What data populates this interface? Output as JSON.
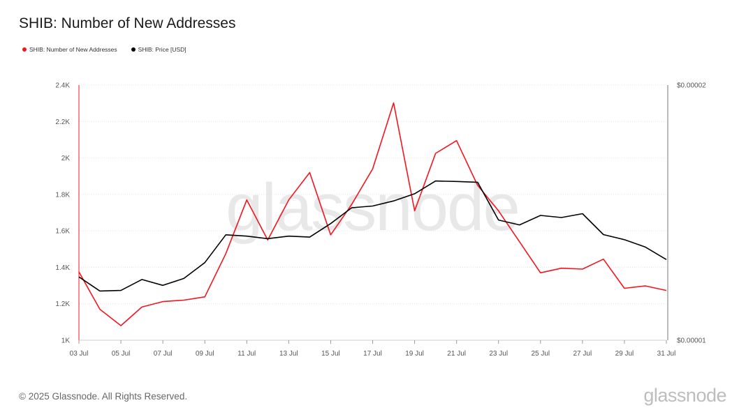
{
  "title": "SHIB: Number of New Addresses",
  "legend": [
    {
      "label": "SHIB: Number of New Addresses",
      "color": "#f5141e"
    },
    {
      "label": "SHIB: Price [USD]",
      "color": "#000000"
    }
  ],
  "watermark": "glassnode",
  "footer": "© 2025 Glassnode. All Rights Reserved.",
  "brand": "glassnode",
  "chart_data": {
    "type": "line",
    "x": [
      "03 Jul",
      "04 Jul",
      "05 Jul",
      "06 Jul",
      "07 Jul",
      "08 Jul",
      "09 Jul",
      "10 Jul",
      "11 Jul",
      "12 Jul",
      "13 Jul",
      "14 Jul",
      "15 Jul",
      "16 Jul",
      "17 Jul",
      "18 Jul",
      "19 Jul",
      "20 Jul",
      "21 Jul",
      "22 Jul",
      "23 Jul",
      "24 Jul",
      "25 Jul",
      "26 Jul",
      "27 Jul",
      "28 Jul",
      "29 Jul",
      "30 Jul",
      "31 Jul"
    ],
    "x_tick_labels": [
      "03 Jul",
      "05 Jul",
      "07 Jul",
      "09 Jul",
      "11 Jul",
      "13 Jul",
      "15 Jul",
      "17 Jul",
      "19 Jul",
      "21 Jul",
      "23 Jul",
      "25 Jul",
      "27 Jul",
      "29 Jul",
      "31 Jul"
    ],
    "y_left": {
      "ylim": [
        1000,
        2400
      ],
      "ticks": [
        1000,
        1200,
        1400,
        1600,
        1800,
        2000,
        2200,
        2400
      ],
      "tick_labels": [
        "1K",
        "1.2K",
        "1.4K",
        "1.6K",
        "1.8K",
        "2K",
        "2.2K",
        "2.4K"
      ]
    },
    "y_right": {
      "ylim": [
        1e-05,
        2e-05
      ],
      "tick_labels": [
        "$0.00001",
        "$0.00002"
      ]
    },
    "series": [
      {
        "name": "SHIB: Number of New Addresses",
        "axis": "left",
        "color": "#f5141e",
        "values": [
          1375,
          1170,
          1080,
          1182,
          1212,
          1220,
          1238,
          1475,
          1770,
          1550,
          1770,
          1920,
          1578,
          1745,
          1940,
          2302,
          1710,
          2025,
          2095,
          1850,
          1710,
          1540,
          1370,
          1395,
          1390,
          1445,
          1285,
          1298,
          1273
        ]
      },
      {
        "name": "SHIB: Price [USD]",
        "axis": "right",
        "color": "#000000",
        "values": [
          1.248e-05,
          1.193e-05,
          1.195e-05,
          1.238e-05,
          1.215e-05,
          1.242e-05,
          1.304e-05,
          1.413e-05,
          1.408e-05,
          1.398e-05,
          1.408e-05,
          1.404e-05,
          1.457e-05,
          1.519e-05,
          1.526e-05,
          1.546e-05,
          1.574e-05,
          1.624e-05,
          1.622e-05,
          1.619e-05,
          1.471e-05,
          1.452e-05,
          1.489e-05,
          1.481e-05,
          1.496e-05,
          1.414e-05,
          1.394e-05,
          1.365e-05,
          1.316e-05
        ]
      }
    ],
    "grid": true,
    "legend_position": "top-left"
  }
}
